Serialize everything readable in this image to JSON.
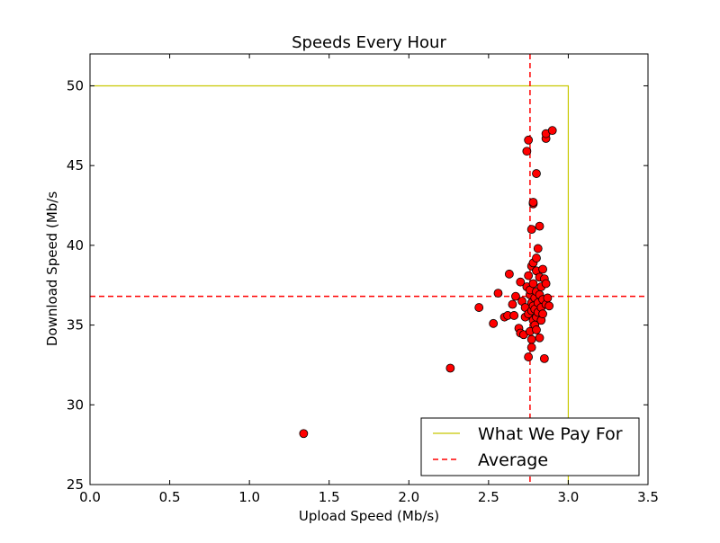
{
  "chart_data": {
    "type": "scatter",
    "title": "Speeds Every Hour",
    "xlabel": "Upload Speed (Mb/s)",
    "ylabel": "Download Speed (Mb/s",
    "xlim": [
      0.0,
      3.5
    ],
    "ylim": [
      25,
      52
    ],
    "x_ticks": [
      0.0,
      0.5,
      1.0,
      1.5,
      2.0,
      2.5,
      3.0,
      3.5
    ],
    "x_tick_labels": [
      "0.0",
      "0.5",
      "1.0",
      "1.5",
      "2.0",
      "2.5",
      "3.0",
      "3.5"
    ],
    "y_ticks": [
      25,
      30,
      35,
      40,
      45,
      50
    ],
    "y_tick_labels": [
      "25",
      "30",
      "35",
      "40",
      "45",
      "50"
    ],
    "grid": false,
    "legend_position": "bottom-right",
    "legend": [
      {
        "label": "What We Pay For",
        "style": "solid",
        "color": "#c8c800"
      },
      {
        "label": "Average",
        "style": "dashed",
        "color": "#ff0000"
      }
    ],
    "paid_plan": {
      "upload": 3.0,
      "download": 50
    },
    "average": {
      "upload": 2.76,
      "download": 36.8
    },
    "point_color": "#ff0000",
    "points": [
      [
        1.34,
        28.2
      ],
      [
        2.26,
        32.3
      ],
      [
        2.44,
        36.1
      ],
      [
        2.53,
        35.1
      ],
      [
        2.56,
        37.0
      ],
      [
        2.6,
        35.5
      ],
      [
        2.62,
        35.6
      ],
      [
        2.63,
        38.2
      ],
      [
        2.65,
        36.3
      ],
      [
        2.66,
        35.6
      ],
      [
        2.67,
        36.8
      ],
      [
        2.69,
        34.8
      ],
      [
        2.7,
        37.7
      ],
      [
        2.7,
        34.5
      ],
      [
        2.71,
        36.5
      ],
      [
        2.72,
        34.4
      ],
      [
        2.73,
        35.5
      ],
      [
        2.73,
        36.1
      ],
      [
        2.74,
        37.4
      ],
      [
        2.74,
        45.9
      ],
      [
        2.75,
        46.6
      ],
      [
        2.75,
        33.0
      ],
      [
        2.75,
        38.1
      ],
      [
        2.75,
        35.7
      ],
      [
        2.76,
        36.9
      ],
      [
        2.76,
        34.6
      ],
      [
        2.76,
        37.2
      ],
      [
        2.77,
        36.4
      ],
      [
        2.77,
        34.1
      ],
      [
        2.77,
        33.6
      ],
      [
        2.77,
        41.0
      ],
      [
        2.77,
        38.7
      ],
      [
        2.77,
        35.9
      ],
      [
        2.78,
        42.6
      ],
      [
        2.78,
        42.7
      ],
      [
        2.78,
        38.9
      ],
      [
        2.78,
        37.6
      ],
      [
        2.78,
        35.3
      ],
      [
        2.78,
        36.2
      ],
      [
        2.79,
        36.0
      ],
      [
        2.79,
        36.7
      ],
      [
        2.79,
        35.0
      ],
      [
        2.8,
        44.5
      ],
      [
        2.8,
        39.2
      ],
      [
        2.8,
        38.4
      ],
      [
        2.8,
        37.1
      ],
      [
        2.8,
        35.5
      ],
      [
        2.8,
        34.7
      ],
      [
        2.81,
        39.8
      ],
      [
        2.81,
        36.4
      ],
      [
        2.81,
        35.8
      ],
      [
        2.82,
        41.2
      ],
      [
        2.82,
        38.0
      ],
      [
        2.82,
        36.9
      ],
      [
        2.82,
        34.2
      ],
      [
        2.83,
        37.4
      ],
      [
        2.83,
        36.1
      ],
      [
        2.83,
        35.3
      ],
      [
        2.84,
        38.5
      ],
      [
        2.84,
        36.6
      ],
      [
        2.84,
        35.7
      ],
      [
        2.85,
        37.9
      ],
      [
        2.85,
        32.9
      ],
      [
        2.86,
        46.7
      ],
      [
        2.86,
        47.0
      ],
      [
        2.86,
        37.6
      ],
      [
        2.86,
        36.3
      ],
      [
        2.87,
        36.7
      ],
      [
        2.88,
        36.2
      ],
      [
        2.9,
        47.2
      ]
    ]
  }
}
